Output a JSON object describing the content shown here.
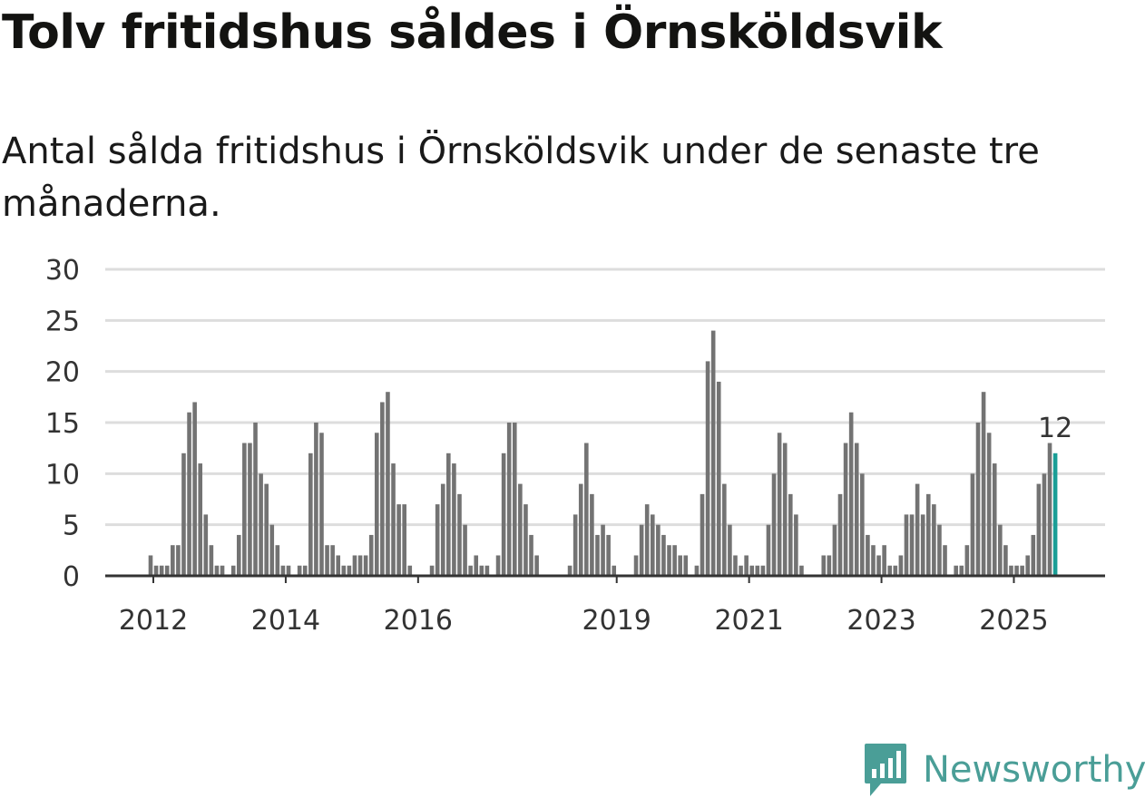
{
  "title": "Tolv fritidshus såldes i Örnsköldsvik",
  "subtitle": "Antal sålda fritidshus i Örnsköldsvik under de senaste tre månaderna.",
  "brand": {
    "name": "Newsworthy"
  },
  "colors": {
    "bar": "#737373",
    "highlight": "#1a9e96",
    "grid": "#dddddd",
    "axis": "#333333",
    "brand": "#4a9e97"
  },
  "chart_data": {
    "type": "bar",
    "title": "Tolv fritidshus såldes i Örnsköldsvik",
    "xlabel": "",
    "ylabel": "",
    "ylim": [
      0,
      30
    ],
    "yticks": [
      0,
      5,
      10,
      15,
      20,
      25,
      30
    ],
    "start": "2012-01",
    "xticks": [
      {
        "label": "2012",
        "index": 0
      },
      {
        "label": "2014",
        "index": 24
      },
      {
        "label": "2016",
        "index": 48
      },
      {
        "label": "2019",
        "index": 84
      },
      {
        "label": "2021",
        "index": 108
      },
      {
        "label": "2023",
        "index": 132
      },
      {
        "label": "2025",
        "index": 156
      }
    ],
    "values": [
      2,
      1,
      1,
      1,
      3,
      3,
      12,
      16,
      17,
      11,
      6,
      3,
      1,
      1,
      null,
      1,
      4,
      13,
      13,
      15,
      10,
      9,
      5,
      3,
      1,
      1,
      null,
      1,
      1,
      12,
      15,
      14,
      3,
      3,
      2,
      1,
      1,
      2,
      2,
      2,
      4,
      14,
      17,
      18,
      11,
      7,
      7,
      1,
      null,
      null,
      null,
      1,
      7,
      9,
      12,
      11,
      8,
      5,
      1,
      2,
      1,
      1,
      null,
      2,
      12,
      15,
      15,
      9,
      7,
      4,
      2,
      null,
      null,
      null,
      null,
      null,
      1,
      6,
      9,
      13,
      8,
      4,
      5,
      4,
      1,
      null,
      null,
      null,
      2,
      5,
      7,
      6,
      5,
      4,
      3,
      3,
      2,
      2,
      null,
      1,
      8,
      21,
      24,
      19,
      9,
      5,
      2,
      1,
      2,
      1,
      1,
      1,
      5,
      10,
      14,
      13,
      8,
      6,
      1,
      null,
      null,
      null,
      2,
      2,
      5,
      8,
      13,
      16,
      13,
      10,
      4,
      3,
      2,
      3,
      1,
      1,
      2,
      6,
      6,
      9,
      6,
      8,
      7,
      5,
      3,
      null,
      1,
      1,
      3,
      10,
      15,
      18,
      14,
      11,
      5,
      3,
      1,
      1,
      1,
      2,
      4,
      9,
      10,
      13,
      12
    ],
    "highlight": {
      "label": "12",
      "value": 12
    }
  }
}
